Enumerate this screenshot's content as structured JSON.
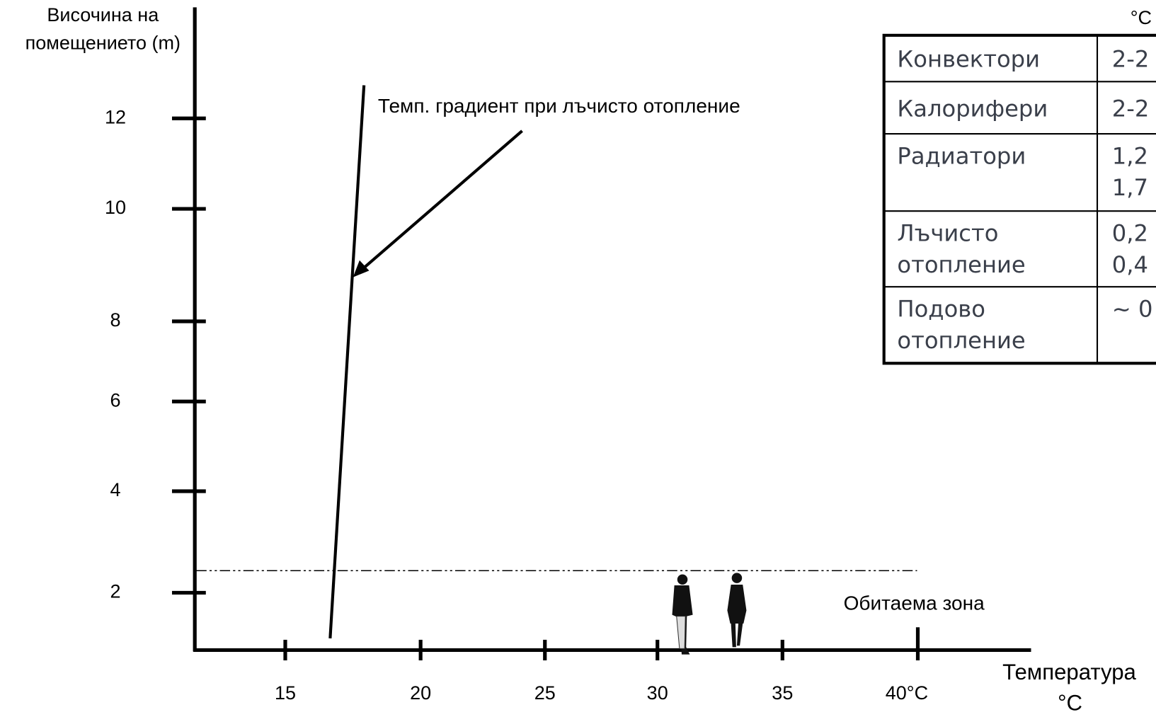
{
  "y_axis": {
    "label_lines": [
      "Височина на",
      "помещението (m)"
    ],
    "ticks": [
      "12",
      "10",
      "8",
      "6",
      "4",
      "2"
    ]
  },
  "x_axis": {
    "label_lines": [
      "Температура",
      "°C"
    ],
    "ticks": [
      "15",
      "20",
      "25",
      "30",
      "35",
      "40°C"
    ]
  },
  "annotations": {
    "gradient": "Темп. градиент при лъчисто отопление",
    "zone": "Обитаема зона"
  },
  "table": {
    "unit": "°C",
    "rows": [
      [
        [
          "Конвектори"
        ],
        [
          "2-2"
        ]
      ],
      [
        [
          "Калорифери"
        ],
        [
          "2-2"
        ]
      ],
      [
        [
          "Радиатори"
        ],
        [
          "1,2",
          "1,7"
        ]
      ],
      [
        [
          "Лъчисто",
          "отопление"
        ],
        [
          "0,2",
          "0,4"
        ]
      ],
      [
        [
          "Подово",
          "отопление"
        ],
        [
          "~ 0"
        ]
      ]
    ]
  }
}
